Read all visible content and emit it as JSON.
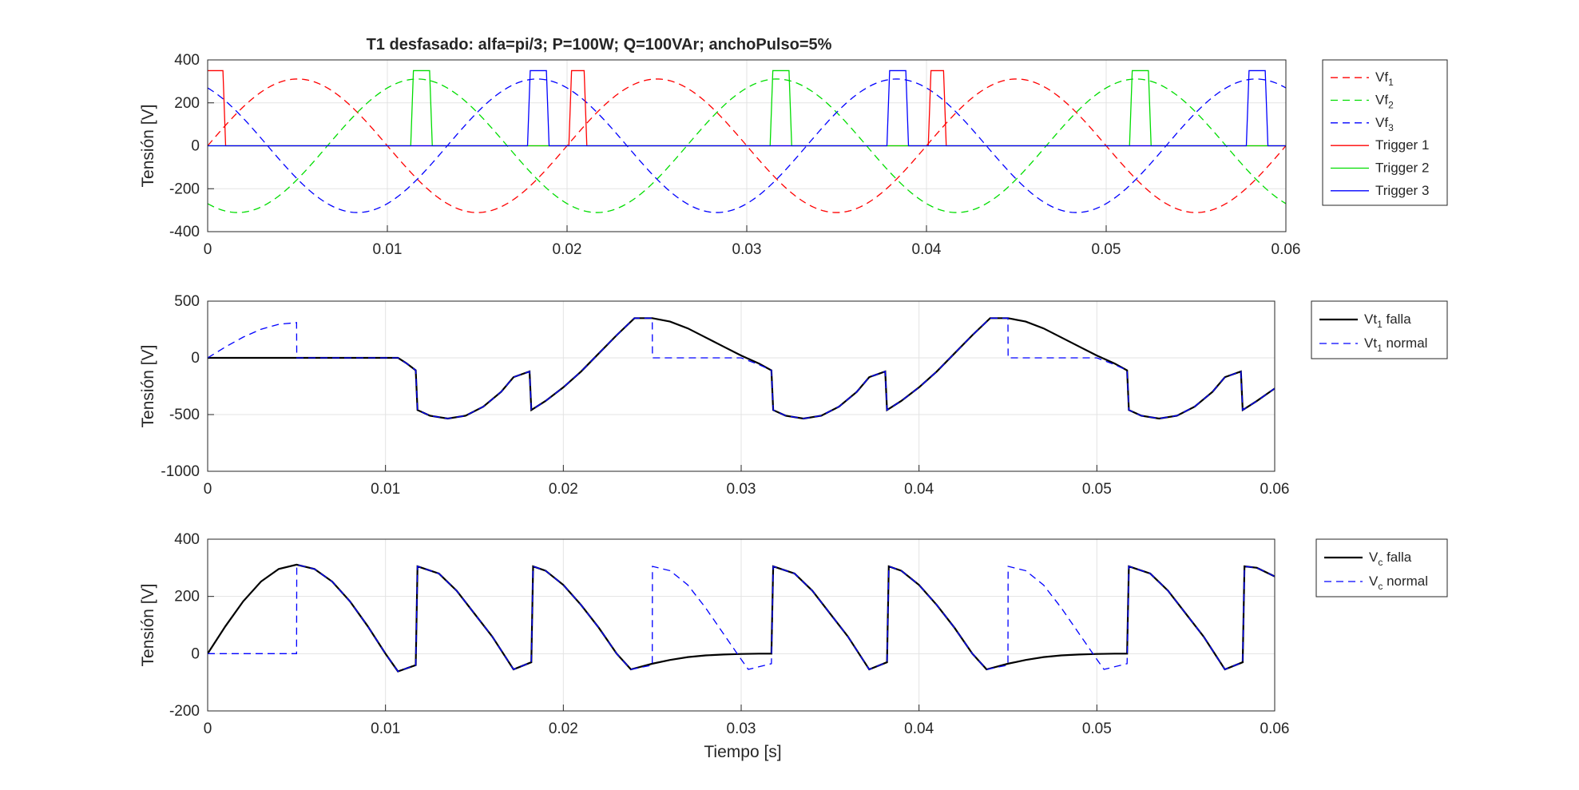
{
  "figure": {
    "title": "T1 desfasado: alfa=pi/3; P=100W; Q=100VAr; anchoPulso=5%",
    "xlabel": "Tiempo [s]",
    "colors": {
      "red": "#ff0000",
      "green": "#00dd00",
      "blue": "#0000ff",
      "black": "#000000",
      "navy": "#1a1a66",
      "grid": "#e3e3e3",
      "axis": "#262626"
    }
  },
  "chart_data": [
    {
      "type": "line",
      "title": "T1 desfasado: alfa=pi/3; P=100W; Q=100VAr; anchoPulso=5%",
      "xlabel": "",
      "ylabel": "Tensión [V]",
      "xlim": [
        0,
        0.06
      ],
      "ylim": [
        -400,
        400
      ],
      "xticks": [
        "0",
        "0.01",
        "0.02",
        "0.03",
        "0.04",
        "0.05",
        "0.06"
      ],
      "yticks": [
        "400",
        "200",
        "0",
        "-200",
        "-400"
      ],
      "grid": true,
      "legend_position": "outside-right",
      "series": [
        {
          "name": "Vf",
          "sub": "1",
          "style": "dashed",
          "color": "#ff0000",
          "kind": "sine",
          "amplitude": 311,
          "frequency": 50,
          "phase_deg": 0
        },
        {
          "name": "Vf",
          "sub": "2",
          "style": "dashed",
          "color": "#00dd00",
          "kind": "sine",
          "amplitude": 311,
          "frequency": 50,
          "phase_deg": -120
        },
        {
          "name": "Vf",
          "sub": "3",
          "style": "dashed",
          "color": "#0000ff",
          "kind": "sine",
          "amplitude": 311,
          "frequency": 50,
          "phase_deg": 120
        },
        {
          "name": "Trigger 1",
          "style": "solid",
          "color": "#ff0000",
          "kind": "pulses",
          "amplitude": 350,
          "starts": [
            0.0,
            0.0201,
            0.0401
          ],
          "width": 0.001
        },
        {
          "name": "Trigger 2",
          "style": "solid",
          "color": "#00dd00",
          "kind": "pulses",
          "amplitude": 350,
          "starts": [
            0.0113,
            0.0313,
            0.0513
          ],
          "width": 0.0012
        },
        {
          "name": "Trigger 3",
          "style": "solid",
          "color": "#0000ff",
          "kind": "pulses",
          "amplitude": 350,
          "starts": [
            0.0178,
            0.0378,
            0.0578
          ],
          "width": 0.0012
        }
      ]
    },
    {
      "type": "line",
      "xlabel": "",
      "ylabel": "Tensión [V]",
      "xlim": [
        0,
        0.06
      ],
      "ylim": [
        -1000,
        500
      ],
      "xticks": [
        "0",
        "0.01",
        "0.02",
        "0.03",
        "0.04",
        "0.05",
        "0.06"
      ],
      "yticks": [
        "500",
        "0",
        "-500",
        "-1000"
      ],
      "grid": true,
      "legend_position": "outside-right",
      "series": [
        {
          "name": "Vt",
          "sub": "1",
          "suffix": "falla",
          "style": "solid",
          "color": "#000000",
          "x": [
            0,
            0.0107,
            0.0112,
            0.0117,
            0.0118,
            0.0125,
            0.0135,
            0.0145,
            0.0155,
            0.0165,
            0.0172,
            0.0181,
            0.0182,
            0.019,
            0.02,
            0.021,
            0.022,
            0.023,
            0.024,
            0.025,
            0.026,
            0.027,
            0.028,
            0.029,
            0.03,
            0.031,
            0.0317,
            0.0318,
            0.0325,
            0.0335,
            0.0345,
            0.0355,
            0.0365,
            0.0372,
            0.0381,
            0.0382,
            0.039,
            0.04,
            0.041,
            0.042,
            0.043,
            0.044,
            0.045,
            0.046,
            0.047,
            0.048,
            0.049,
            0.05,
            0.051,
            0.0517,
            0.0518,
            0.0525,
            0.0535,
            0.0545,
            0.0555,
            0.0565,
            0.0572,
            0.0581,
            0.0582,
            0.059,
            0.06
          ],
          "y": [
            0,
            0,
            -50,
            -110,
            -460,
            -510,
            -535,
            -510,
            -430,
            -300,
            -170,
            -120,
            -460,
            -380,
            -260,
            -120,
            40,
            200,
            350,
            350,
            320,
            260,
            180,
            100,
            20,
            -50,
            -110,
            -460,
            -510,
            -535,
            -510,
            -430,
            -300,
            -170,
            -120,
            -460,
            -380,
            -260,
            -120,
            40,
            200,
            350,
            350,
            320,
            260,
            180,
            100,
            20,
            -50,
            -110,
            -460,
            -510,
            -535,
            -510,
            -430,
            -300,
            -170,
            -120,
            -460,
            -380,
            -270
          ]
        },
        {
          "name": "Vt",
          "sub": "1",
          "suffix": "normal",
          "style": "dashed",
          "color": "#0000ff",
          "x": [
            0,
            0.001,
            0.002,
            0.003,
            0.004,
            0.005,
            0.00501,
            0.0107,
            0.0112,
            0.0117,
            0.0118,
            0.0125,
            0.0135,
            0.0145,
            0.0155,
            0.0165,
            0.0172,
            0.0181,
            0.0182,
            0.019,
            0.02,
            0.021,
            0.022,
            0.023,
            0.024,
            0.025,
            0.02501,
            0.03,
            0.031,
            0.0317,
            0.0318,
            0.0325,
            0.0335,
            0.0345,
            0.0355,
            0.0365,
            0.0372,
            0.0381,
            0.0382,
            0.039,
            0.04,
            0.041,
            0.042,
            0.043,
            0.044,
            0.045,
            0.04501,
            0.05,
            0.051,
            0.0517,
            0.0518,
            0.0525,
            0.0535,
            0.0545,
            0.0555,
            0.0565,
            0.0572,
            0.0581,
            0.0582,
            0.059,
            0.06
          ],
          "y": [
            0,
            96,
            183,
            252,
            296,
            311,
            0,
            0,
            -50,
            -110,
            -460,
            -510,
            -535,
            -510,
            -430,
            -300,
            -170,
            -120,
            -460,
            -380,
            -260,
            -120,
            40,
            200,
            350,
            350,
            0,
            0,
            -60,
            -110,
            -460,
            -510,
            -535,
            -510,
            -430,
            -300,
            -170,
            -120,
            -460,
            -380,
            -260,
            -120,
            40,
            200,
            350,
            350,
            0,
            0,
            -60,
            -110,
            -460,
            -510,
            -535,
            -510,
            -430,
            -300,
            -170,
            -120,
            -460,
            -380,
            -270
          ]
        }
      ]
    },
    {
      "type": "line",
      "xlabel": "Tiempo [s]",
      "ylabel": "Tensión [V]",
      "xlim": [
        0,
        0.06
      ],
      "ylim": [
        -200,
        400
      ],
      "xticks": [
        "0",
        "0.01",
        "0.02",
        "0.03",
        "0.04",
        "0.05",
        "0.06"
      ],
      "yticks": [
        "400",
        "200",
        "0",
        "-200"
      ],
      "grid": true,
      "legend_position": "outside-right",
      "series": [
        {
          "name": "V",
          "sub": "c",
          "suffix": "falla",
          "style": "solid",
          "color": "#000000",
          "x": [
            0,
            0.001,
            0.002,
            0.003,
            0.004,
            0.005,
            0.006,
            0.007,
            0.008,
            0.009,
            0.01,
            0.0107,
            0.0117,
            0.0118,
            0.013,
            0.014,
            0.015,
            0.016,
            0.0172,
            0.0182,
            0.0183,
            0.019,
            0.02,
            0.021,
            0.022,
            0.023,
            0.0238,
            0.025,
            0.026,
            0.027,
            0.028,
            0.029,
            0.03,
            0.031,
            0.0317,
            0.0318,
            0.033,
            0.034,
            0.035,
            0.036,
            0.0372,
            0.0382,
            0.0383,
            0.039,
            0.04,
            0.041,
            0.042,
            0.043,
            0.0438,
            0.045,
            0.046,
            0.047,
            0.048,
            0.049,
            0.05,
            0.051,
            0.0517,
            0.0518,
            0.053,
            0.054,
            0.055,
            0.056,
            0.0572,
            0.0582,
            0.0583,
            0.059,
            0.06
          ],
          "y": [
            0,
            96,
            183,
            252,
            296,
            311,
            296,
            252,
            183,
            96,
            0,
            -62,
            -40,
            305,
            280,
            220,
            140,
            60,
            -55,
            -30,
            305,
            290,
            240,
            170,
            90,
            0,
            -55,
            -35,
            -22,
            -12,
            -6,
            -3,
            -1,
            0,
            0,
            305,
            280,
            220,
            140,
            60,
            -55,
            -30,
            305,
            290,
            240,
            170,
            90,
            0,
            -55,
            -35,
            -22,
            -12,
            -6,
            -3,
            -1,
            0,
            0,
            305,
            280,
            220,
            140,
            60,
            -55,
            -30,
            305,
            300,
            270
          ]
        },
        {
          "name": "V",
          "sub": "c",
          "suffix": "normal",
          "style": "dashed",
          "color": "#0000ff",
          "x": [
            0,
            0.005,
            0.00501,
            0.006,
            0.007,
            0.008,
            0.009,
            0.01,
            0.0107,
            0.0117,
            0.0118,
            0.013,
            0.014,
            0.015,
            0.016,
            0.0172,
            0.0182,
            0.0183,
            0.019,
            0.02,
            0.021,
            0.022,
            0.023,
            0.0238,
            0.025,
            0.02501,
            0.026,
            0.027,
            0.028,
            0.029,
            0.03,
            0.0304,
            0.0317,
            0.0318,
            0.033,
            0.034,
            0.035,
            0.036,
            0.0372,
            0.0382,
            0.0383,
            0.039,
            0.04,
            0.041,
            0.042,
            0.043,
            0.0438,
            0.045,
            0.04501,
            0.046,
            0.047,
            0.048,
            0.049,
            0.05,
            0.0504,
            0.0517,
            0.0518,
            0.053,
            0.054,
            0.055,
            0.056,
            0.0572,
            0.0582,
            0.0583,
            0.059,
            0.06
          ],
          "y": [
            0,
            0,
            311,
            296,
            252,
            183,
            96,
            0,
            -62,
            -40,
            305,
            280,
            220,
            140,
            60,
            -55,
            -30,
            305,
            290,
            240,
            170,
            90,
            0,
            -55,
            -40,
            305,
            290,
            240,
            160,
            70,
            -20,
            -55,
            -35,
            305,
            280,
            220,
            140,
            60,
            -55,
            -30,
            305,
            290,
            240,
            170,
            90,
            0,
            -55,
            -40,
            305,
            290,
            240,
            160,
            70,
            -20,
            -55,
            -35,
            305,
            280,
            220,
            140,
            60,
            -55,
            -30,
            305,
            300,
            270
          ]
        }
      ]
    }
  ]
}
